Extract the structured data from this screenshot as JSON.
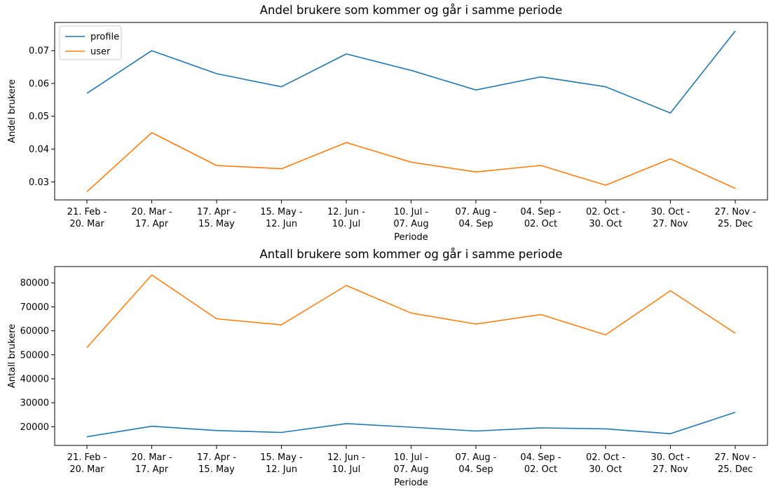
{
  "colors": {
    "profile": "#1f77b4",
    "user": "#ff7f0e"
  },
  "chart_data": [
    {
      "type": "line",
      "title": "Andel brukere som kommer og går i samme periode",
      "xlabel": "Periode",
      "ylabel": "Andel brukere",
      "categories": [
        [
          "21. Feb -",
          "20. Mar"
        ],
        [
          "20. Mar -",
          "17. Apr"
        ],
        [
          "17. Apr -",
          "15. May"
        ],
        [
          "15. May -",
          "12. Jun"
        ],
        [
          "12. Jun -",
          "10. Jul"
        ],
        [
          "10. Jul -",
          "07. Aug"
        ],
        [
          "07. Aug -",
          "04. Sep"
        ],
        [
          "04. Sep -",
          "02. Oct"
        ],
        [
          "02. Oct -",
          "30. Oct"
        ],
        [
          "30. Oct -",
          "27. Nov"
        ],
        [
          "27. Nov -",
          "25. Dec"
        ]
      ],
      "ylim": [
        0.0245,
        0.0786
      ],
      "yticks": [
        0.03,
        0.04,
        0.05,
        0.06,
        0.07
      ],
      "ytick_labels": [
        "0.03",
        "0.04",
        "0.05",
        "0.06",
        "0.07"
      ],
      "legend": "top-left",
      "series": [
        {
          "name": "profile",
          "color": "#1f77b4",
          "values": [
            0.057,
            0.07,
            0.063,
            0.059,
            0.069,
            0.064,
            0.058,
            0.062,
            0.059,
            0.051,
            0.076
          ]
        },
        {
          "name": "user",
          "color": "#ff7f0e",
          "values": [
            0.027,
            0.045,
            0.035,
            0.034,
            0.042,
            0.036,
            0.033,
            0.035,
            0.029,
            0.037,
            0.028
          ]
        }
      ]
    },
    {
      "type": "line",
      "title": "Antall brukere som kommer og går i samme periode",
      "xlabel": "Periode",
      "ylabel": "Antall brukere",
      "categories": [
        [
          "21. Feb -",
          "20. Mar"
        ],
        [
          "20. Mar -",
          "17. Apr"
        ],
        [
          "17. Apr -",
          "15. May"
        ],
        [
          "15. May -",
          "12. Jun"
        ],
        [
          "12. Jun -",
          "10. Jul"
        ],
        [
          "10. Jul -",
          "07. Aug"
        ],
        [
          "07. Aug -",
          "04. Sep"
        ],
        [
          "04. Sep -",
          "02. Oct"
        ],
        [
          "02. Oct -",
          "30. Oct"
        ],
        [
          "30. Oct -",
          "27. Nov"
        ],
        [
          "27. Nov -",
          "25. Dec"
        ]
      ],
      "ylim": [
        12200,
        86800
      ],
      "yticks": [
        20000,
        30000,
        40000,
        50000,
        60000,
        70000,
        80000
      ],
      "ytick_labels": [
        "20000",
        "30000",
        "40000",
        "50000",
        "60000",
        "70000",
        "80000"
      ],
      "series": [
        {
          "name": "profile",
          "color": "#1f77b4",
          "values": [
            15800,
            20200,
            18400,
            17600,
            21300,
            19800,
            18200,
            19500,
            19100,
            17100,
            26000
          ]
        },
        {
          "name": "user",
          "color": "#ff7f0e",
          "values": [
            53000,
            83300,
            65000,
            62500,
            78900,
            67400,
            62800,
            66800,
            58300,
            76700,
            59000
          ]
        }
      ]
    }
  ]
}
